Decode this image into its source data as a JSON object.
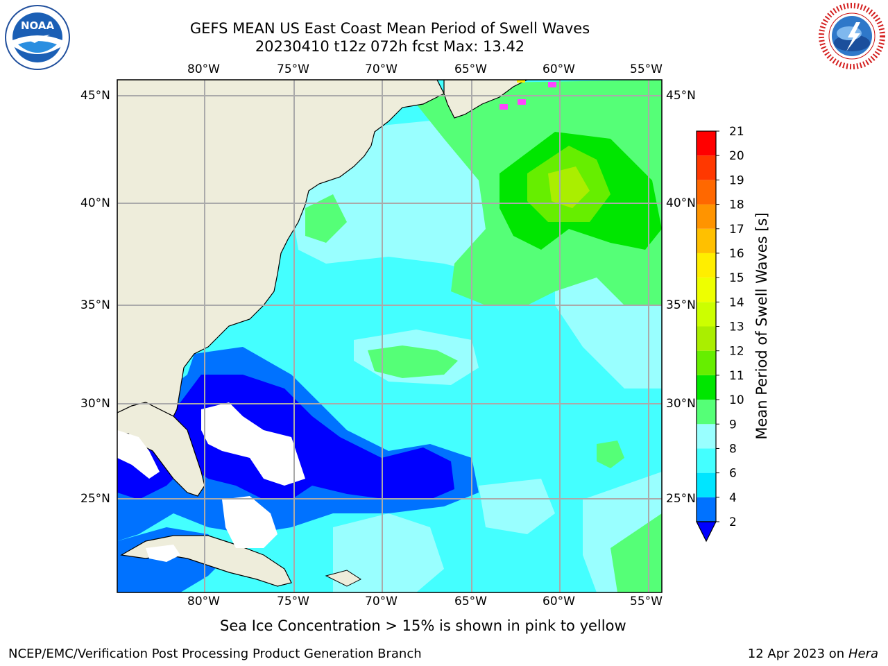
{
  "header": {
    "title_line1": "GEFS MEAN US East Coast Mean Period of Swell Waves",
    "title_line2": "20230410 t12z 072h fcst   Max: 13.42",
    "logo_left_text": "NOAA",
    "logo_right_text": "NATIONAL WEATHER SERVICE"
  },
  "map": {
    "lon_ticks": [
      "80°W",
      "75°W",
      "70°W",
      "65°W",
      "60°W",
      "55°W"
    ],
    "lat_ticks": [
      "45°N",
      "40°N",
      "35°N",
      "30°N",
      "25°N"
    ],
    "colors": {
      "land": "#eeeddb",
      "ocean_base": "#44ffff",
      "gridline": "#aaaaaa",
      "coast": "#000000"
    }
  },
  "colorbar": {
    "label": "Mean Period of Swell Waves [s]",
    "ticks": [
      "2",
      "4",
      "6",
      "8",
      "9",
      "10",
      "11",
      "12",
      "13",
      "14",
      "15",
      "16",
      "17",
      "18",
      "19",
      "20",
      "21"
    ],
    "colors": [
      "#0000ff",
      "#0072ff",
      "#00e5ff",
      "#44ffff",
      "#99ffff",
      "#55ff77",
      "#00e600",
      "#66ee00",
      "#aaee00",
      "#ccff00",
      "#eeff00",
      "#ffee00",
      "#ffc000",
      "#ff9400",
      "#ff6800",
      "#ff3800",
      "#ff0000"
    ]
  },
  "notes": {
    "sea_ice": "Sea Ice Concentration > 15% is shown in pink to yellow"
  },
  "footer": {
    "org": "NCEP/EMC/Verification Post Processing Product Generation Branch",
    "date_prefix": "12 Apr 2023 on",
    "machine": "Hera"
  }
}
